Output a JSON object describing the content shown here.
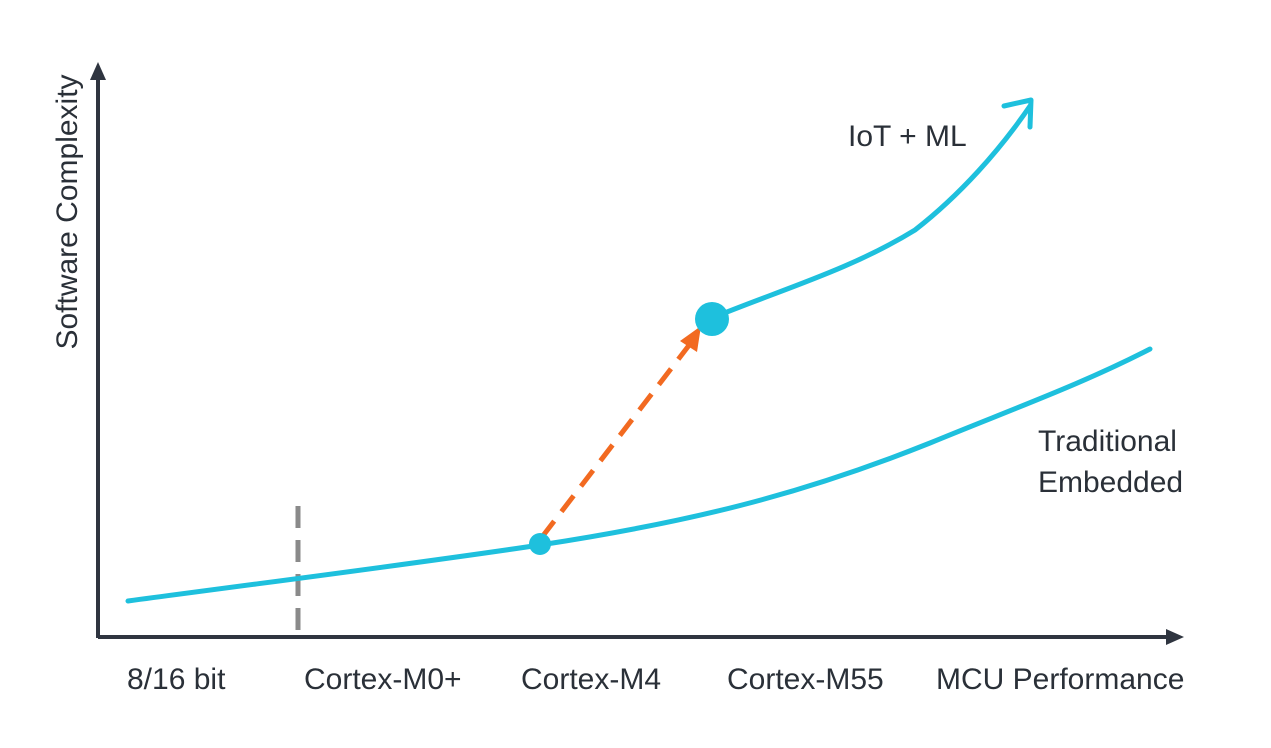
{
  "y_axis": {
    "label": "Software Complexity"
  },
  "x_axis": {
    "ticks": [
      "8/16 bit",
      "Cortex-M0+",
      "Cortex-M4",
      "Cortex-M55"
    ],
    "label": "MCU Performance"
  },
  "curves": {
    "iot_ml_label": "IoT + ML",
    "traditional_label_line1": "Traditional",
    "traditional_label_line2": "Embedded"
  },
  "colors": {
    "axis": "#2f3540",
    "curve": "#1ec0dd",
    "arrow": "#f26a21",
    "divider": "#8a8a8a",
    "text": "#2a3038"
  }
}
